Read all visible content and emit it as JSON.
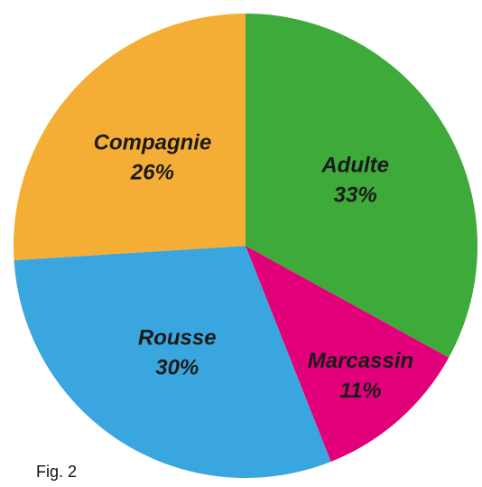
{
  "chart_data": {
    "type": "pie",
    "categories": [
      "Adulte",
      "Marcassin",
      "Rousse",
      "Compagnie"
    ],
    "values": [
      33,
      11,
      30,
      26
    ],
    "value_labels": [
      "33%",
      "11%",
      "30%",
      "26%"
    ],
    "colors": [
      "#3daa3a",
      "#e2007a",
      "#3aa6df",
      "#f5ae35"
    ],
    "caption": "Fig. 2"
  }
}
